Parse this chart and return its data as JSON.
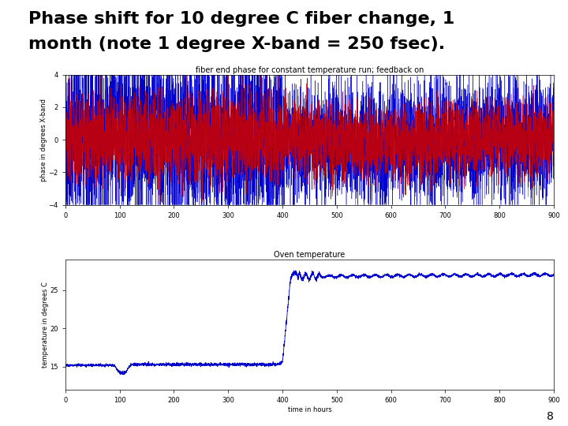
{
  "title_line1": "Phase shift for 10 degree C fiber change, 1",
  "title_line2": "month (note 1 degree X-band = 250 fsec).",
  "title_fontsize": 16,
  "background_color": "#ffffff",
  "slide_number": "8",
  "top_plot": {
    "title": "fiber end phase for constant temperature run; feedback on",
    "xlabel": "",
    "ylabel": "phase in degrees X-band",
    "xlim": [
      0,
      900
    ],
    "ylim": [
      -4,
      4
    ],
    "yticks": [
      -4,
      -2,
      0,
      2,
      4
    ],
    "xticks": [
      0,
      100,
      200,
      300,
      400,
      500,
      600,
      700,
      800,
      900
    ],
    "title_fontsize": 7,
    "label_fontsize": 6
  },
  "bottom_plot": {
    "title": "Oven temperature",
    "xlabel": "time in hours",
    "ylabel": "temperature in degrees C",
    "xlim": [
      0,
      900
    ],
    "ylim": [
      12,
      29
    ],
    "yticks": [
      15,
      20,
      25
    ],
    "xticks": [
      0,
      100,
      200,
      300,
      400,
      500,
      600,
      700,
      800,
      900
    ],
    "title_fontsize": 7,
    "label_fontsize": 6
  },
  "blue_color": "#0000cc",
  "red_color": "#cc0000",
  "temp_color": "#0000cc",
  "random_seed": 42,
  "n_points_phase": 9000,
  "phase_transition": 400,
  "phase_amplitude_blue_early": 3.8,
  "phase_amplitude_red_early": 2.2,
  "phase_amplitude_blue_late": 2.5,
  "phase_amplitude_red_late": 1.8
}
